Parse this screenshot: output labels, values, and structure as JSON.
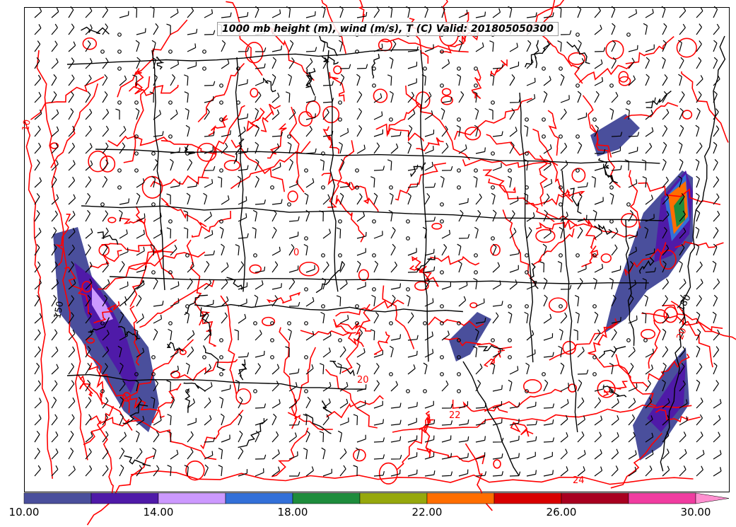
{
  "title": "1000 mb height (m), wind (m/s), T (C) Valid: 201805050300",
  "colorbar": {
    "tick_labels": [
      "10.00",
      "14.00",
      "18.00",
      "22.00",
      "26.00",
      "30.00"
    ],
    "colors": [
      "#4a4f9c",
      "#4f1aa8",
      "#cc99ff",
      "#3370d8",
      "#1e8c3c",
      "#96a80c",
      "#ff6e00",
      "#d80000",
      "#a80020",
      "#f03ca0",
      "#ff90d0"
    ]
  },
  "contour_labels": [
    "10",
    "150",
    "180",
    "20",
    "22",
    "24",
    "20",
    "0"
  ],
  "colors": {
    "temperature_contour": "#ff0000",
    "height_contour": "#000000",
    "wind_barb": "#000000"
  }
}
